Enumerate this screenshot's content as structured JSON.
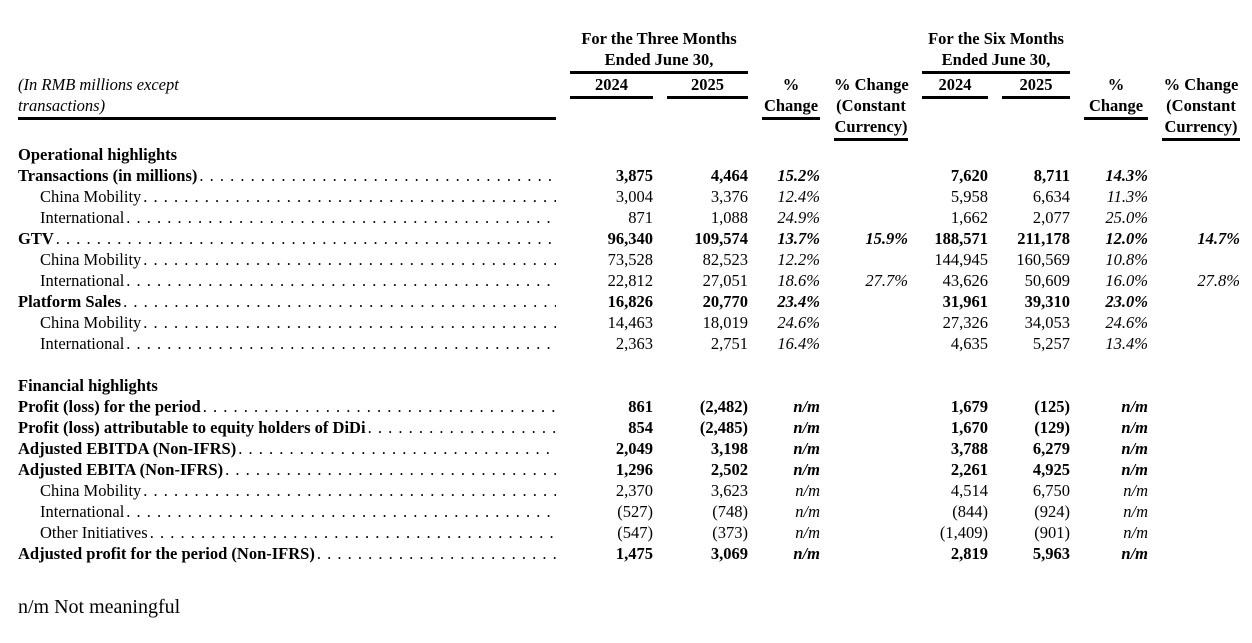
{
  "table": {
    "groups": [
      {
        "line1": "For the Three Months",
        "line2": "Ended June 30,"
      },
      {
        "line1": "For the Six Months",
        "line2": "Ended June 30,"
      }
    ],
    "row_label_header": {
      "line1": "(In RMB millions except",
      "line2": "transactions)"
    },
    "col_headers": {
      "year_2024": "2024",
      "year_2025": "2025",
      "pct_line1": "%",
      "pct_line2": "Change",
      "cc_line1": "% Change",
      "cc_line2": "(Constant",
      "cc_line3": "Currency)"
    },
    "rows": [
      {
        "type": "section",
        "label": "Operational highlights",
        "leader": false,
        "values": [
          "",
          "",
          "",
          "",
          "",
          "",
          "",
          ""
        ]
      },
      {
        "type": "main",
        "label": "Transactions (in millions)",
        "leader": true,
        "values": [
          "3,875",
          "4,464",
          "15.2%",
          "",
          "7,620",
          "8,711",
          "14.3%",
          ""
        ]
      },
      {
        "type": "sub",
        "label": "China Mobility",
        "leader": true,
        "values": [
          "3,004",
          "3,376",
          "12.4%",
          "",
          "5,958",
          "6,634",
          "11.3%",
          ""
        ]
      },
      {
        "type": "sub",
        "label": "International",
        "leader": true,
        "values": [
          "871",
          "1,088",
          "24.9%",
          "",
          "1,662",
          "2,077",
          "25.0%",
          ""
        ]
      },
      {
        "type": "main",
        "label": "GTV",
        "leader": true,
        "values": [
          "96,340",
          "109,574",
          "13.7%",
          "15.9%",
          "188,571",
          "211,178",
          "12.0%",
          "14.7%"
        ]
      },
      {
        "type": "sub",
        "label": "China Mobility",
        "leader": true,
        "values": [
          "73,528",
          "82,523",
          "12.2%",
          "",
          "144,945",
          "160,569",
          "10.8%",
          ""
        ]
      },
      {
        "type": "sub",
        "label": "International",
        "leader": true,
        "values": [
          "22,812",
          "27,051",
          "18.6%",
          "27.7%",
          "43,626",
          "50,609",
          "16.0%",
          "27.8%"
        ]
      },
      {
        "type": "main",
        "label": "Platform Sales",
        "leader": true,
        "values": [
          "16,826",
          "20,770",
          "23.4%",
          "",
          "31,961",
          "39,310",
          "23.0%",
          ""
        ]
      },
      {
        "type": "sub",
        "label": "China Mobility",
        "leader": true,
        "values": [
          "14,463",
          "18,019",
          "24.6%",
          "",
          "27,326",
          "34,053",
          "24.6%",
          ""
        ]
      },
      {
        "type": "sub",
        "label": "International",
        "leader": true,
        "values": [
          "2,363",
          "2,751",
          "16.4%",
          "",
          "4,635",
          "5,257",
          "13.4%",
          ""
        ]
      },
      {
        "type": "spacer",
        "label": "",
        "leader": false,
        "values": [
          "",
          "",
          "",
          "",
          "",
          "",
          "",
          ""
        ]
      },
      {
        "type": "section",
        "label": "Financial highlights",
        "leader": false,
        "values": [
          "",
          "",
          "",
          "",
          "",
          "",
          "",
          ""
        ]
      },
      {
        "type": "main",
        "label": "Profit (loss) for the period",
        "leader": true,
        "values": [
          "861",
          "(2,482)",
          "n/m",
          "",
          "1,679",
          "(125)",
          "n/m",
          ""
        ]
      },
      {
        "type": "main",
        "label": "Profit (loss) attributable to equity holders of DiDi",
        "leader": true,
        "values": [
          "854",
          "(2,485)",
          "n/m",
          "",
          "1,670",
          "(129)",
          "n/m",
          ""
        ]
      },
      {
        "type": "main",
        "label": "Adjusted EBITDA (Non-IFRS)",
        "leader": true,
        "values": [
          "2,049",
          "3,198",
          "n/m",
          "",
          "3,788",
          "6,279",
          "n/m",
          ""
        ]
      },
      {
        "type": "main",
        "label": "Adjusted EBITA (Non-IFRS)",
        "leader": true,
        "values": [
          "1,296",
          "2,502",
          "n/m",
          "",
          "2,261",
          "4,925",
          "n/m",
          ""
        ]
      },
      {
        "type": "sub",
        "label": "China Mobility",
        "leader": true,
        "values": [
          "2,370",
          "3,623",
          "n/m",
          "",
          "4,514",
          "6,750",
          "n/m",
          ""
        ]
      },
      {
        "type": "sub",
        "label": "International",
        "leader": true,
        "values": [
          "(527)",
          "(748)",
          "n/m",
          "",
          "(844)",
          "(924)",
          "n/m",
          ""
        ]
      },
      {
        "type": "sub",
        "label": "Other Initiatives",
        "leader": true,
        "values": [
          "(547)",
          "(373)",
          "n/m",
          "",
          "(1,409)",
          "(901)",
          "n/m",
          ""
        ]
      },
      {
        "type": "main",
        "label": "Adjusted profit for the period (Non-IFRS)",
        "leader": true,
        "values": [
          "1,475",
          "3,069",
          "n/m",
          "",
          "2,819",
          "5,963",
          "n/m",
          ""
        ]
      }
    ]
  },
  "footnote": "n/m Not meaningful"
}
